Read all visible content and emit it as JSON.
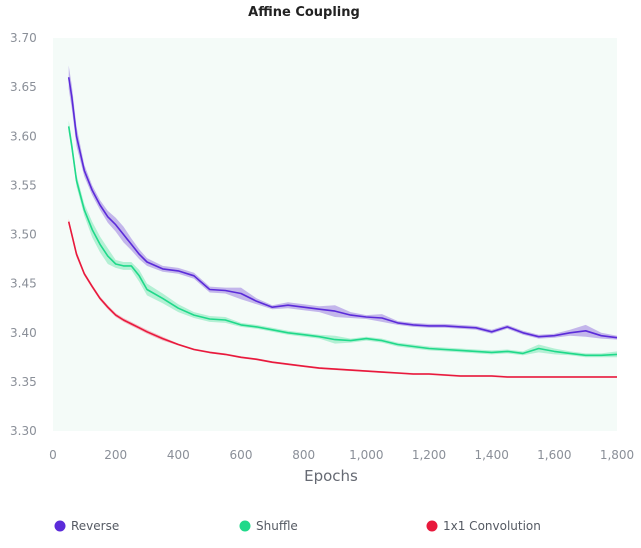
{
  "chart_data": {
    "type": "line",
    "title": "Affine Coupling",
    "xlabel": "Epochs",
    "ylabel": "",
    "xlim": [
      0,
      1800
    ],
    "ylim": [
      3.3,
      3.7
    ],
    "xticks": [
      0,
      200,
      400,
      600,
      800,
      1000,
      1200,
      1400,
      1600,
      1800
    ],
    "xtick_labels": [
      "0",
      "200",
      "400",
      "600",
      "800",
      "1,000",
      "1,200",
      "1,400",
      "1,600",
      "1,800"
    ],
    "yticks": [
      3.3,
      3.35,
      3.4,
      3.45,
      3.5,
      3.55,
      3.6,
      3.65,
      3.7
    ],
    "ytick_labels": [
      "3.30",
      "3.35",
      "3.40",
      "3.45",
      "3.50",
      "3.55",
      "3.60",
      "3.65",
      "3.70"
    ],
    "grid": false,
    "legend_position": "bottom",
    "plot_background": "#f4fbf8",
    "series": [
      {
        "name": "Reverse",
        "color": "#5b2bd9",
        "band_color": "#9b7de0",
        "x": [
          50,
          60,
          75,
          100,
          125,
          150,
          175,
          200,
          225,
          250,
          275,
          300,
          350,
          400,
          450,
          500,
          550,
          600,
          650,
          700,
          750,
          800,
          850,
          900,
          950,
          1000,
          1050,
          1100,
          1150,
          1200,
          1250,
          1300,
          1350,
          1400,
          1450,
          1500,
          1550,
          1600,
          1650,
          1700,
          1750,
          1800
        ],
        "values": [
          3.66,
          3.64,
          3.6,
          3.565,
          3.545,
          3.53,
          3.518,
          3.51,
          3.5,
          3.49,
          3.48,
          3.472,
          3.465,
          3.463,
          3.458,
          3.444,
          3.443,
          3.44,
          3.432,
          3.426,
          3.428,
          3.426,
          3.424,
          3.422,
          3.418,
          3.416,
          3.415,
          3.41,
          3.408,
          3.407,
          3.407,
          3.406,
          3.405,
          3.401,
          3.406,
          3.4,
          3.396,
          3.397,
          3.4,
          3.402,
          3.397,
          3.395
        ],
        "band": [
          0.012,
          0.012,
          0.01,
          0.006,
          0.005,
          0.005,
          0.006,
          0.007,
          0.008,
          0.006,
          0.005,
          0.004,
          0.003,
          0.003,
          0.003,
          0.003,
          0.003,
          0.006,
          0.003,
          0.002,
          0.003,
          0.003,
          0.003,
          0.006,
          0.003,
          0.002,
          0.004,
          0.002,
          0.002,
          0.002,
          0.002,
          0.002,
          0.002,
          0.002,
          0.002,
          0.002,
          0.002,
          0.002,
          0.003,
          0.006,
          0.003,
          0.002
        ]
      },
      {
        "name": "Shuffle",
        "color": "#1fd98a",
        "band_color": "#7de8b6",
        "x": [
          50,
          60,
          75,
          100,
          125,
          150,
          175,
          200,
          225,
          250,
          275,
          300,
          350,
          400,
          450,
          500,
          550,
          600,
          650,
          700,
          750,
          800,
          850,
          900,
          950,
          1000,
          1050,
          1100,
          1150,
          1200,
          1250,
          1300,
          1350,
          1400,
          1450,
          1500,
          1550,
          1600,
          1650,
          1700,
          1750,
          1800
        ],
        "values": [
          3.61,
          3.59,
          3.555,
          3.525,
          3.505,
          3.49,
          3.478,
          3.47,
          3.468,
          3.468,
          3.458,
          3.444,
          3.435,
          3.425,
          3.418,
          3.414,
          3.413,
          3.408,
          3.406,
          3.403,
          3.4,
          3.398,
          3.396,
          3.393,
          3.392,
          3.394,
          3.392,
          3.388,
          3.386,
          3.384,
          3.383,
          3.382,
          3.381,
          3.38,
          3.381,
          3.379,
          3.384,
          3.381,
          3.379,
          3.377,
          3.377,
          3.378
        ],
        "band": [
          0.006,
          0.006,
          0.006,
          0.006,
          0.008,
          0.008,
          0.008,
          0.004,
          0.004,
          0.004,
          0.006,
          0.006,
          0.005,
          0.004,
          0.003,
          0.003,
          0.003,
          0.002,
          0.002,
          0.002,
          0.002,
          0.002,
          0.002,
          0.004,
          0.002,
          0.002,
          0.002,
          0.002,
          0.002,
          0.002,
          0.002,
          0.002,
          0.002,
          0.002,
          0.002,
          0.002,
          0.004,
          0.003,
          0.002,
          0.002,
          0.002,
          0.003
        ]
      },
      {
        "name": "1x1 Convolution",
        "color": "#e8193c",
        "band_color": "#f28b9c",
        "x": [
          50,
          60,
          75,
          100,
          125,
          150,
          175,
          200,
          225,
          250,
          275,
          300,
          350,
          400,
          450,
          500,
          550,
          600,
          650,
          700,
          750,
          800,
          850,
          900,
          950,
          1000,
          1050,
          1100,
          1150,
          1200,
          1250,
          1300,
          1350,
          1400,
          1450,
          1500,
          1550,
          1600,
          1650,
          1700,
          1750,
          1800
        ],
        "values": [
          3.513,
          3.5,
          3.48,
          3.46,
          3.447,
          3.435,
          3.426,
          3.418,
          3.413,
          3.409,
          3.405,
          3.401,
          3.394,
          3.388,
          3.383,
          3.38,
          3.378,
          3.375,
          3.373,
          3.37,
          3.368,
          3.366,
          3.364,
          3.363,
          3.362,
          3.361,
          3.36,
          3.359,
          3.358,
          3.358,
          3.357,
          3.356,
          3.356,
          3.356,
          3.355,
          3.355,
          3.355,
          3.355,
          3.355,
          3.355,
          3.355,
          3.355
        ],
        "band": [
          0.003,
          0.003,
          0.003,
          0.002,
          0.002,
          0.002,
          0.002,
          0.002,
          0.002,
          0.002,
          0.002,
          0.002,
          0.002,
          0.001,
          0.001,
          0.001,
          0.001,
          0.001,
          0.001,
          0.001,
          0.001,
          0.001,
          0.001,
          0.001,
          0.001,
          0.001,
          0.001,
          0.001,
          0.001,
          0.001,
          0.001,
          0.001,
          0.001,
          0.001,
          0.001,
          0.001,
          0.001,
          0.001,
          0.001,
          0.001,
          0.001,
          0.001
        ]
      }
    ]
  }
}
